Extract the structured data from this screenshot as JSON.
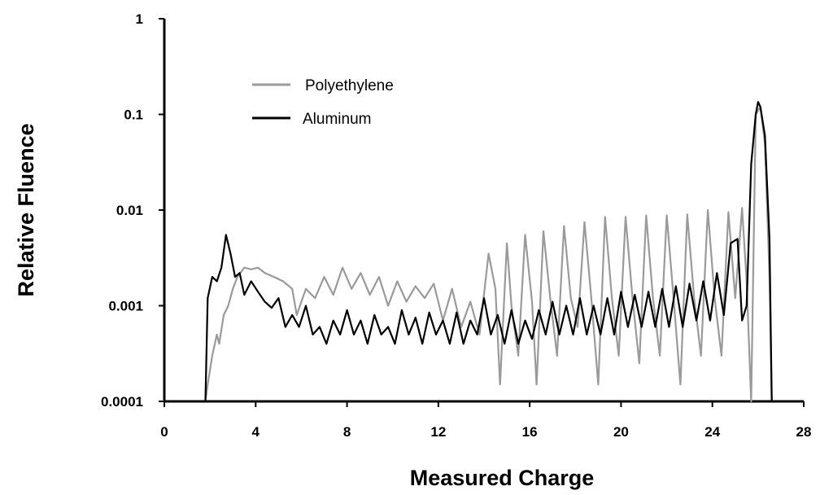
{
  "chart_data": {
    "type": "line",
    "title": "",
    "xlabel": "Measured Charge",
    "ylabel": "Relative Fluence",
    "xlim": [
      0,
      28
    ],
    "ylim": [
      0.0001,
      1
    ],
    "y_scale": "log",
    "x_ticks": [
      0,
      4,
      8,
      12,
      16,
      20,
      24,
      28
    ],
    "x_tick_labels": [
      "0",
      "4",
      "8",
      "12",
      "16",
      "20",
      "24",
      "28"
    ],
    "y_ticks": [
      0.0001,
      0.001,
      0.01,
      0.1,
      1
    ],
    "y_tick_labels": [
      "0.0001",
      "0.001",
      "0.01",
      "0.1",
      "1"
    ],
    "grid": false,
    "legend_position": "top-left",
    "series": [
      {
        "name": "Polyethylene",
        "color": "#9a9a9a",
        "x": [
          1.8,
          1.9,
          2.1,
          2.3,
          2.4,
          2.6,
          2.8,
          3.0,
          3.2,
          3.5,
          3.8,
          4.1,
          4.4,
          4.8,
          5.2,
          5.6,
          5.8,
          6.2,
          6.6,
          7.0,
          7.4,
          7.8,
          8.2,
          8.6,
          9.0,
          9.4,
          9.8,
          10.2,
          10.6,
          11.0,
          11.4,
          11.8,
          12.2,
          12.6,
          13.0,
          13.4,
          13.8,
          14.2,
          14.5,
          14.7,
          15.0,
          15.2,
          15.5,
          15.8,
          16.1,
          16.3,
          16.6,
          16.9,
          17.2,
          17.5,
          17.8,
          18.1,
          18.4,
          18.7,
          19.0,
          19.3,
          19.6,
          19.9,
          20.2,
          20.5,
          20.8,
          21.1,
          21.4,
          21.7,
          22.0,
          22.3,
          22.6,
          22.9,
          23.2,
          23.5,
          23.8,
          24.1,
          24.4,
          24.7,
          25.0,
          25.3,
          25.5,
          25.7,
          25.9,
          26.1,
          26.3,
          26.5,
          26.6
        ],
        "values": [
          0.0001,
          0.00015,
          0.0003,
          0.0005,
          0.0004,
          0.0008,
          0.001,
          0.0015,
          0.002,
          0.0025,
          0.0024,
          0.0025,
          0.0022,
          0.002,
          0.0018,
          0.0015,
          0.0008,
          0.0015,
          0.0012,
          0.002,
          0.0013,
          0.0025,
          0.0015,
          0.0022,
          0.0013,
          0.002,
          0.001,
          0.0018,
          0.0011,
          0.0016,
          0.0012,
          0.0017,
          0.0007,
          0.0015,
          0.0006,
          0.0011,
          0.0005,
          0.0035,
          0.0015,
          0.00015,
          0.0045,
          0.001,
          0.0003,
          0.0055,
          0.0011,
          0.00015,
          0.006,
          0.0012,
          0.0003,
          0.0068,
          0.0012,
          0.0006,
          0.0075,
          0.0012,
          0.00015,
          0.0085,
          0.0012,
          0.0003,
          0.0085,
          0.0012,
          0.00025,
          0.0088,
          0.0012,
          0.0003,
          0.0088,
          0.0012,
          0.00015,
          0.009,
          0.0012,
          0.0003,
          0.01,
          0.0012,
          0.0003,
          0.0095,
          0.0012,
          0.0105,
          0.0018,
          0.0001,
          0.1,
          0.12,
          0.05,
          0.002,
          0.0001
        ]
      },
      {
        "name": "Aluminum",
        "color": "#000000",
        "x": [
          1.8,
          1.9,
          2.1,
          2.3,
          2.5,
          2.7,
          2.9,
          3.1,
          3.3,
          3.5,
          3.8,
          4.1,
          4.4,
          4.7,
          5.0,
          5.3,
          5.6,
          5.9,
          6.2,
          6.5,
          6.8,
          7.1,
          7.4,
          7.7,
          8.0,
          8.3,
          8.6,
          8.9,
          9.2,
          9.5,
          9.8,
          10.1,
          10.4,
          10.7,
          11.0,
          11.3,
          11.6,
          11.9,
          12.2,
          12.5,
          12.8,
          13.1,
          13.4,
          13.7,
          14.0,
          14.3,
          14.6,
          14.9,
          15.2,
          15.5,
          15.8,
          16.1,
          16.4,
          16.7,
          17.0,
          17.3,
          17.6,
          17.9,
          18.2,
          18.5,
          18.8,
          19.1,
          19.4,
          19.7,
          20.0,
          20.3,
          20.6,
          20.9,
          21.2,
          21.5,
          21.8,
          22.1,
          22.4,
          22.7,
          23.0,
          23.3,
          23.6,
          23.9,
          24.2,
          24.5,
          24.8,
          25.1,
          25.3,
          25.5,
          25.7,
          25.9,
          26.0,
          26.1,
          26.3,
          26.5,
          26.6
        ],
        "values": [
          0.0001,
          0.0012,
          0.002,
          0.0018,
          0.0025,
          0.0055,
          0.0035,
          0.002,
          0.0022,
          0.0013,
          0.0018,
          0.0014,
          0.0011,
          0.00095,
          0.0012,
          0.0006,
          0.0008,
          0.0006,
          0.001,
          0.0005,
          0.0006,
          0.0004,
          0.0007,
          0.0005,
          0.0009,
          0.0005,
          0.0007,
          0.0004,
          0.0008,
          0.0005,
          0.0006,
          0.0004,
          0.0009,
          0.0005,
          0.00075,
          0.0004,
          0.00085,
          0.0005,
          0.0007,
          0.0004,
          0.00085,
          0.0004,
          0.0007,
          0.0005,
          0.0012,
          0.0005,
          0.0008,
          0.0004,
          0.0009,
          0.0004,
          0.0007,
          0.00045,
          0.0009,
          0.0005,
          0.0011,
          0.0005,
          0.001,
          0.0005,
          0.0012,
          0.0005,
          0.001,
          0.0005,
          0.0012,
          0.0005,
          0.0014,
          0.0006,
          0.0013,
          0.0006,
          0.0014,
          0.0006,
          0.0015,
          0.0006,
          0.0016,
          0.0006,
          0.0017,
          0.0007,
          0.0018,
          0.0007,
          0.0022,
          0.0008,
          0.0045,
          0.005,
          0.0007,
          0.001,
          0.03,
          0.1,
          0.135,
          0.12,
          0.06,
          0.005,
          0.0001
        ]
      }
    ]
  }
}
